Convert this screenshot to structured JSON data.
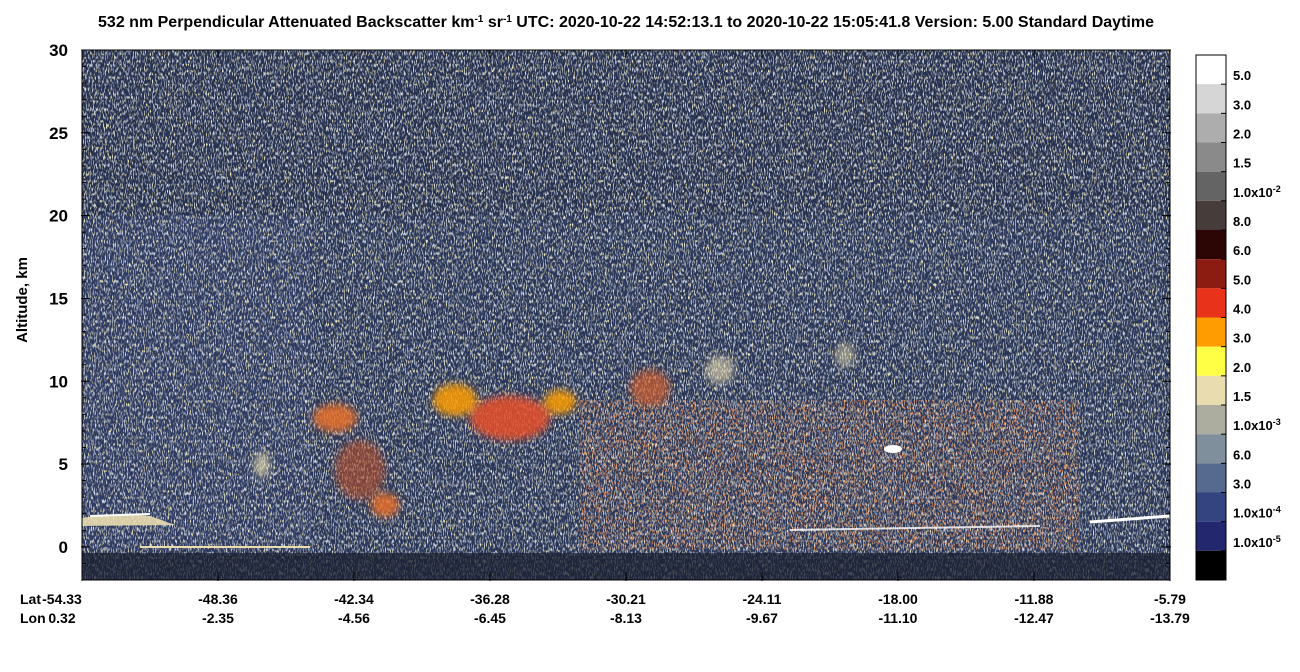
{
  "chart_data": {
    "type": "heatmap",
    "title_parts": [
      "532 nm Perpendicular Attenuated Backscatter km",
      "-1",
      " sr",
      "-1",
      "  UTC: 2020-10-22 14:52:13.1 to 2020-10-22 15:05:41.8  Version: 5.00 Standard Daytime"
    ],
    "ylabel": "Altitude, km",
    "ylim": [
      -2,
      30
    ],
    "yticks": [
      0,
      5,
      10,
      15,
      20,
      25,
      30
    ],
    "x_row_labels": [
      "Lat",
      "Lon"
    ],
    "lat": [
      "-54.33",
      "-48.36",
      "-42.34",
      "-36.28",
      "-30.21",
      "-24.11",
      "-18.00",
      "-11.88",
      "-5.79"
    ],
    "lon": [
      "0.32",
      "-2.35",
      "-4.56",
      "-6.45",
      "-8.13",
      "-9.67",
      "-11.10",
      "-12.47",
      "-13.79"
    ],
    "colorbar_labels": [
      {
        "text": "5.0"
      },
      {
        "text": "3.0"
      },
      {
        "text": "2.0"
      },
      {
        "text": "1.5"
      },
      {
        "text": "1.0x10",
        "sup": "-2"
      },
      {
        "text": "8.0"
      },
      {
        "text": "6.0"
      },
      {
        "text": "5.0"
      },
      {
        "text": "4.0"
      },
      {
        "text": "3.0"
      },
      {
        "text": "2.0"
      },
      {
        "text": "1.5"
      },
      {
        "text": "1.0x10",
        "sup": "-3"
      },
      {
        "text": "6.0"
      },
      {
        "text": "3.0"
      },
      {
        "text": "1.0x10",
        "sup": "-4"
      },
      {
        "text": "1.0x10",
        "sup": "-5"
      }
    ],
    "colorbar_colors": [
      "#ffffff",
      "#d6d6d6",
      "#adadad",
      "#8a8a8a",
      "#646464",
      "#463c3a",
      "#2c0605",
      "#8c1b12",
      "#e8321a",
      "#ff9d00",
      "#ffff45",
      "#e9ddb0",
      "#acad9f",
      "#7f8f9c",
      "#56698e",
      "#334480",
      "#23286e",
      "#000000"
    ]
  }
}
